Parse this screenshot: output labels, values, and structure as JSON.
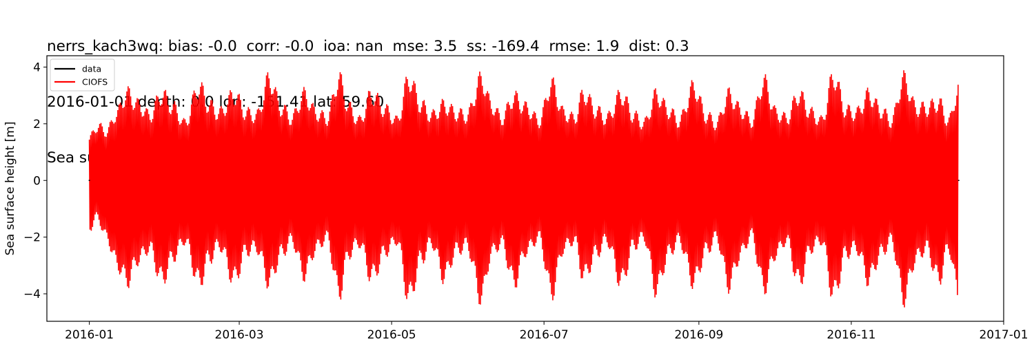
{
  "chart_data": {
    "type": "line",
    "title_lines": [
      "nerrs_kach3wq: bias: -0.0  corr: -0.0  ioa: nan  mse: 3.5  ss: -169.4  rmse: 1.9  dist: 0.3",
      "2016-01-01 depth: 0.0 lon: -151.41 lat: 59.60",
      "Sea surface height with mean subtracted, from fixed station"
    ],
    "stats": {
      "station": "nerrs_kach3wq",
      "bias": "-0.0",
      "corr": "-0.0",
      "ioa": "nan",
      "mse": "3.5",
      "ss": "-169.4",
      "rmse": "1.9",
      "dist": "0.3",
      "date": "2016-01-01",
      "depth": "0.0",
      "lon": "-151.41",
      "lat": "59.60"
    },
    "xlabel": "",
    "ylabel": "Sea surface height [m]",
    "xlim": [
      "2015-12-15",
      "2017-01-01"
    ],
    "ylim": [
      -4.97,
      4.4
    ],
    "x_ticks": [
      "2016-01",
      "2016-03",
      "2016-05",
      "2016-07",
      "2016-09",
      "2016-11",
      "2017-01"
    ],
    "y_ticks": [
      4,
      2,
      0,
      -2,
      -4
    ],
    "y_tick_labels": [
      "4",
      "2",
      "0",
      "−2",
      "−4"
    ],
    "grid": false,
    "legend": {
      "position": "upper left",
      "entries": [
        {
          "label": "data",
          "color": "#000000"
        },
        {
          "label": "CIOFS",
          "color": "#ff0000"
        }
      ]
    },
    "series": [
      {
        "name": "data",
        "color": "#000000",
        "note": "essentially flat at ~0; only visible as tiny marks at start and end",
        "x": [
          "2016-01-01",
          "2016-12-14"
        ],
        "values": [
          0.0,
          0.0
        ]
      },
      {
        "name": "CIOFS",
        "color": "#ff0000",
        "note": "semidiurnal tidal signal; envelope maxima/minima sampled along the record (day-of-year, upper, lower)",
        "envelope": [
          {
            "day": 0,
            "upper": 1.6,
            "lower": -1.85
          },
          {
            "day": 3,
            "upper": 2.1,
            "lower": -1.4
          },
          {
            "day": 7,
            "upper": 1.9,
            "lower": -2.2
          },
          {
            "day": 11,
            "upper": 2.6,
            "lower": -3.2
          },
          {
            "day": 15,
            "upper": 3.35,
            "lower": -3.85
          },
          {
            "day": 20,
            "upper": 2.9,
            "lower": -3.0
          },
          {
            "day": 24,
            "upper": 2.5,
            "lower": -2.6
          },
          {
            "day": 29,
            "upper": 3.3,
            "lower": -3.8
          },
          {
            "day": 34,
            "upper": 2.8,
            "lower": -2.9
          },
          {
            "day": 38,
            "upper": 2.2,
            "lower": -2.3
          },
          {
            "day": 44,
            "upper": 3.6,
            "lower": -3.9
          },
          {
            "day": 48,
            "upper": 2.9,
            "lower": -3.0
          },
          {
            "day": 52,
            "upper": 2.6,
            "lower": -2.5
          },
          {
            "day": 58,
            "upper": 3.3,
            "lower": -3.8
          },
          {
            "day": 63,
            "upper": 2.6,
            "lower": -2.7
          },
          {
            "day": 67,
            "upper": 2.5,
            "lower": -2.6
          },
          {
            "day": 72,
            "upper": 3.9,
            "lower": -3.9
          },
          {
            "day": 77,
            "upper": 2.8,
            "lower": -2.8
          },
          {
            "day": 81,
            "upper": 2.4,
            "lower": -2.3
          },
          {
            "day": 86,
            "upper": 3.3,
            "lower": -3.6
          },
          {
            "day": 91,
            "upper": 2.6,
            "lower": -2.6
          },
          {
            "day": 95,
            "upper": 2.4,
            "lower": -2.2
          },
          {
            "day": 100,
            "upper": 3.9,
            "lower": -4.3
          },
          {
            "day": 104,
            "upper": 2.8,
            "lower": -2.8
          },
          {
            "day": 108,
            "upper": 2.3,
            "lower": -2.4
          },
          {
            "day": 113,
            "upper": 3.3,
            "lower": -3.7
          },
          {
            "day": 119,
            "upper": 2.7,
            "lower": -2.7
          },
          {
            "day": 123,
            "upper": 2.3,
            "lower": -2.3
          },
          {
            "day": 128,
            "upper": 3.9,
            "lower": -4.5
          },
          {
            "day": 133,
            "upper": 2.9,
            "lower": -3.0
          },
          {
            "day": 137,
            "upper": 2.5,
            "lower": -2.4
          },
          {
            "day": 142,
            "upper": 2.9,
            "lower": -3.7
          },
          {
            "day": 147,
            "upper": 2.6,
            "lower": -2.7
          },
          {
            "day": 151,
            "upper": 2.5,
            "lower": -2.5
          },
          {
            "day": 157,
            "upper": 3.9,
            "lower": -4.5
          },
          {
            "day": 161,
            "upper": 2.9,
            "lower": -2.8
          },
          {
            "day": 165,
            "upper": 2.4,
            "lower": -2.4
          },
          {
            "day": 170,
            "upper": 3.2,
            "lower": -3.9
          },
          {
            "day": 175,
            "upper": 2.8,
            "lower": -2.7
          },
          {
            "day": 180,
            "upper": 2.3,
            "lower": -2.2
          },
          {
            "day": 185,
            "upper": 3.7,
            "lower": -4.3
          },
          {
            "day": 190,
            "upper": 2.6,
            "lower": -2.6
          },
          {
            "day": 194,
            "upper": 2.4,
            "lower": -2.3
          },
          {
            "day": 198,
            "upper": 3.35,
            "lower": -3.7
          },
          {
            "day": 203,
            "upper": 2.7,
            "lower": -2.8
          },
          {
            "day": 207,
            "upper": 2.4,
            "lower": -2.3
          },
          {
            "day": 213,
            "upper": 3.3,
            "lower": -3.9
          },
          {
            "day": 218,
            "upper": 2.5,
            "lower": -2.5
          },
          {
            "day": 222,
            "upper": 2.2,
            "lower": -2.2
          },
          {
            "day": 227,
            "upper": 3.3,
            "lower": -4.2
          },
          {
            "day": 232,
            "upper": 2.7,
            "lower": -2.8
          },
          {
            "day": 236,
            "upper": 2.3,
            "lower": -2.3
          },
          {
            "day": 242,
            "upper": 3.6,
            "lower": -3.9
          },
          {
            "day": 247,
            "upper": 2.5,
            "lower": -2.7
          },
          {
            "day": 251,
            "upper": 2.2,
            "lower": -2.2
          },
          {
            "day": 256,
            "upper": 3.3,
            "lower": -4.0
          },
          {
            "day": 261,
            "upper": 2.7,
            "lower": -2.8
          },
          {
            "day": 265,
            "upper": 2.3,
            "lower": -2.1
          },
          {
            "day": 270,
            "upper": 3.8,
            "lower": -4.1
          },
          {
            "day": 275,
            "upper": 2.6,
            "lower": -2.8
          },
          {
            "day": 279,
            "upper": 2.4,
            "lower": -2.3
          },
          {
            "day": 284,
            "upper": 3.3,
            "lower": -3.9
          },
          {
            "day": 289,
            "upper": 2.6,
            "lower": -2.6
          },
          {
            "day": 293,
            "upper": 2.3,
            "lower": -2.3
          },
          {
            "day": 298,
            "upper": 4.0,
            "lower": -4.4
          },
          {
            "day": 303,
            "upper": 2.7,
            "lower": -2.8
          },
          {
            "day": 307,
            "upper": 2.6,
            "lower": -2.6
          },
          {
            "day": 312,
            "upper": 3.3,
            "lower": -3.8
          },
          {
            "day": 317,
            "upper": 2.7,
            "lower": -2.8
          },
          {
            "day": 321,
            "upper": 2.3,
            "lower": -2.3
          },
          {
            "day": 326,
            "upper": 3.9,
            "lower": -4.5
          },
          {
            "day": 331,
            "upper": 2.8,
            "lower": -3.0
          },
          {
            "day": 335,
            "upper": 2.8,
            "lower": -2.6
          },
          {
            "day": 340,
            "upper": 3.0,
            "lower": -3.8
          },
          {
            "day": 344,
            "upper": 2.3,
            "lower": -2.6
          },
          {
            "day": 348,
            "upper": 3.55,
            "lower": -4.5
          }
        ]
      }
    ]
  }
}
